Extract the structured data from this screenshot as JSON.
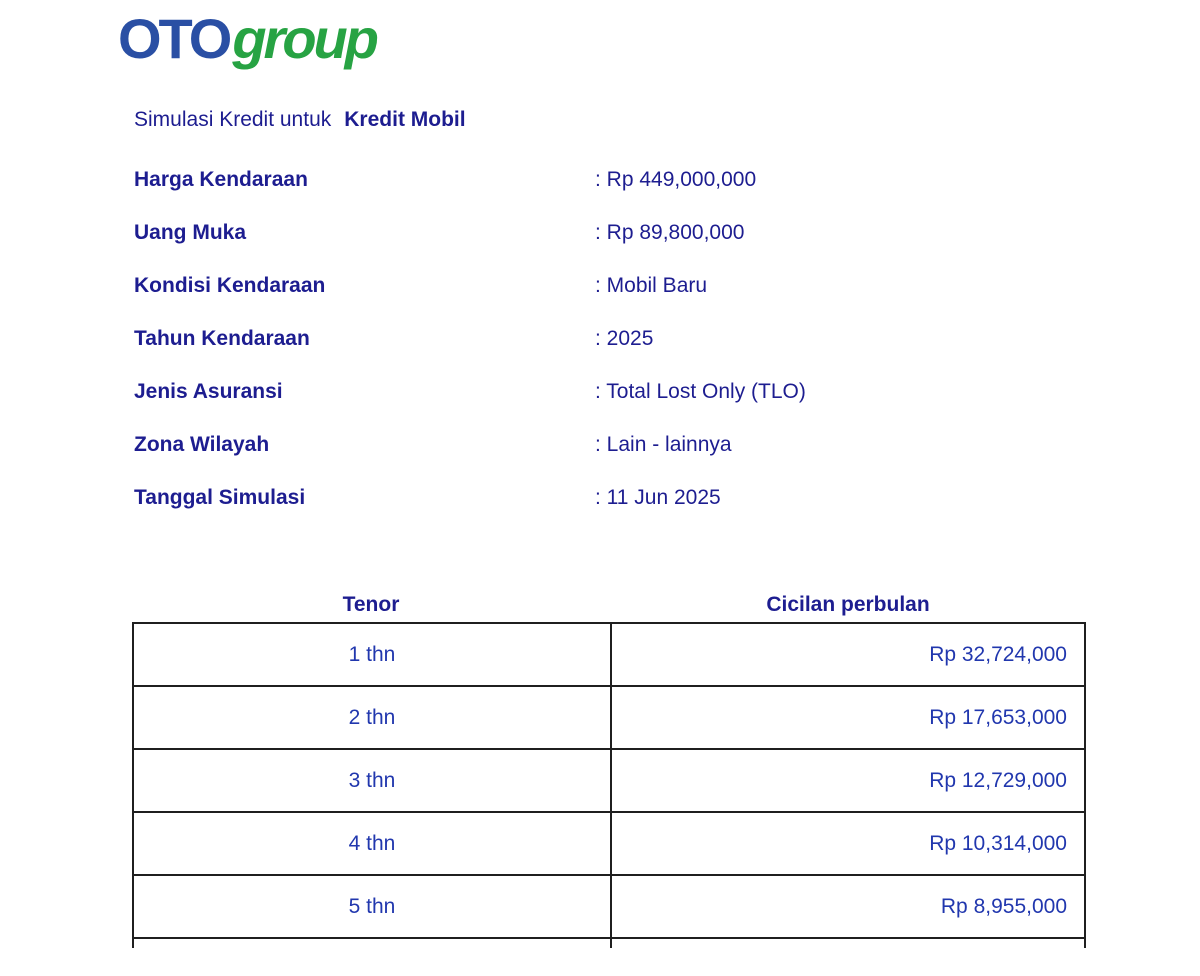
{
  "logo": {
    "oto": "OTO",
    "group": "group"
  },
  "title": {
    "prefix": "Simulasi Kredit untuk",
    "product": "Kredit Mobil"
  },
  "details": [
    {
      "label": "Harga Kendaraan",
      "value": ": Rp 449,000,000"
    },
    {
      "label": "Uang Muka",
      "value": ": Rp 89,800,000"
    },
    {
      "label": "Kondisi Kendaraan",
      "value": ": Mobil Baru"
    },
    {
      "label": "Tahun Kendaraan",
      "value": ": 2025"
    },
    {
      "label": "Jenis Asuransi",
      "value": ": Total Lost Only (TLO)"
    },
    {
      "label": "Zona Wilayah",
      "value": ": Lain - lainnya"
    },
    {
      "label": "Tanggal Simulasi",
      "value": ": 11 Jun 2025"
    }
  ],
  "table": {
    "headers": [
      "Tenor",
      "Cicilan perbulan"
    ],
    "rows": [
      {
        "tenor": "1 thn",
        "cicilan": "Rp 32,724,000"
      },
      {
        "tenor": "2 thn",
        "cicilan": "Rp 17,653,000"
      },
      {
        "tenor": "3 thn",
        "cicilan": "Rp 12,729,000"
      },
      {
        "tenor": "4 thn",
        "cicilan": "Rp 10,314,000"
      },
      {
        "tenor": "5 thn",
        "cicilan": "Rp 8,955,000"
      }
    ]
  },
  "colors": {
    "text_navy": "#1d1d90",
    "table_text_blue": "#2137ae",
    "logo_blue": "#2a4fa4",
    "logo_green": "#27a343",
    "table_border": "#1f1f1f"
  }
}
